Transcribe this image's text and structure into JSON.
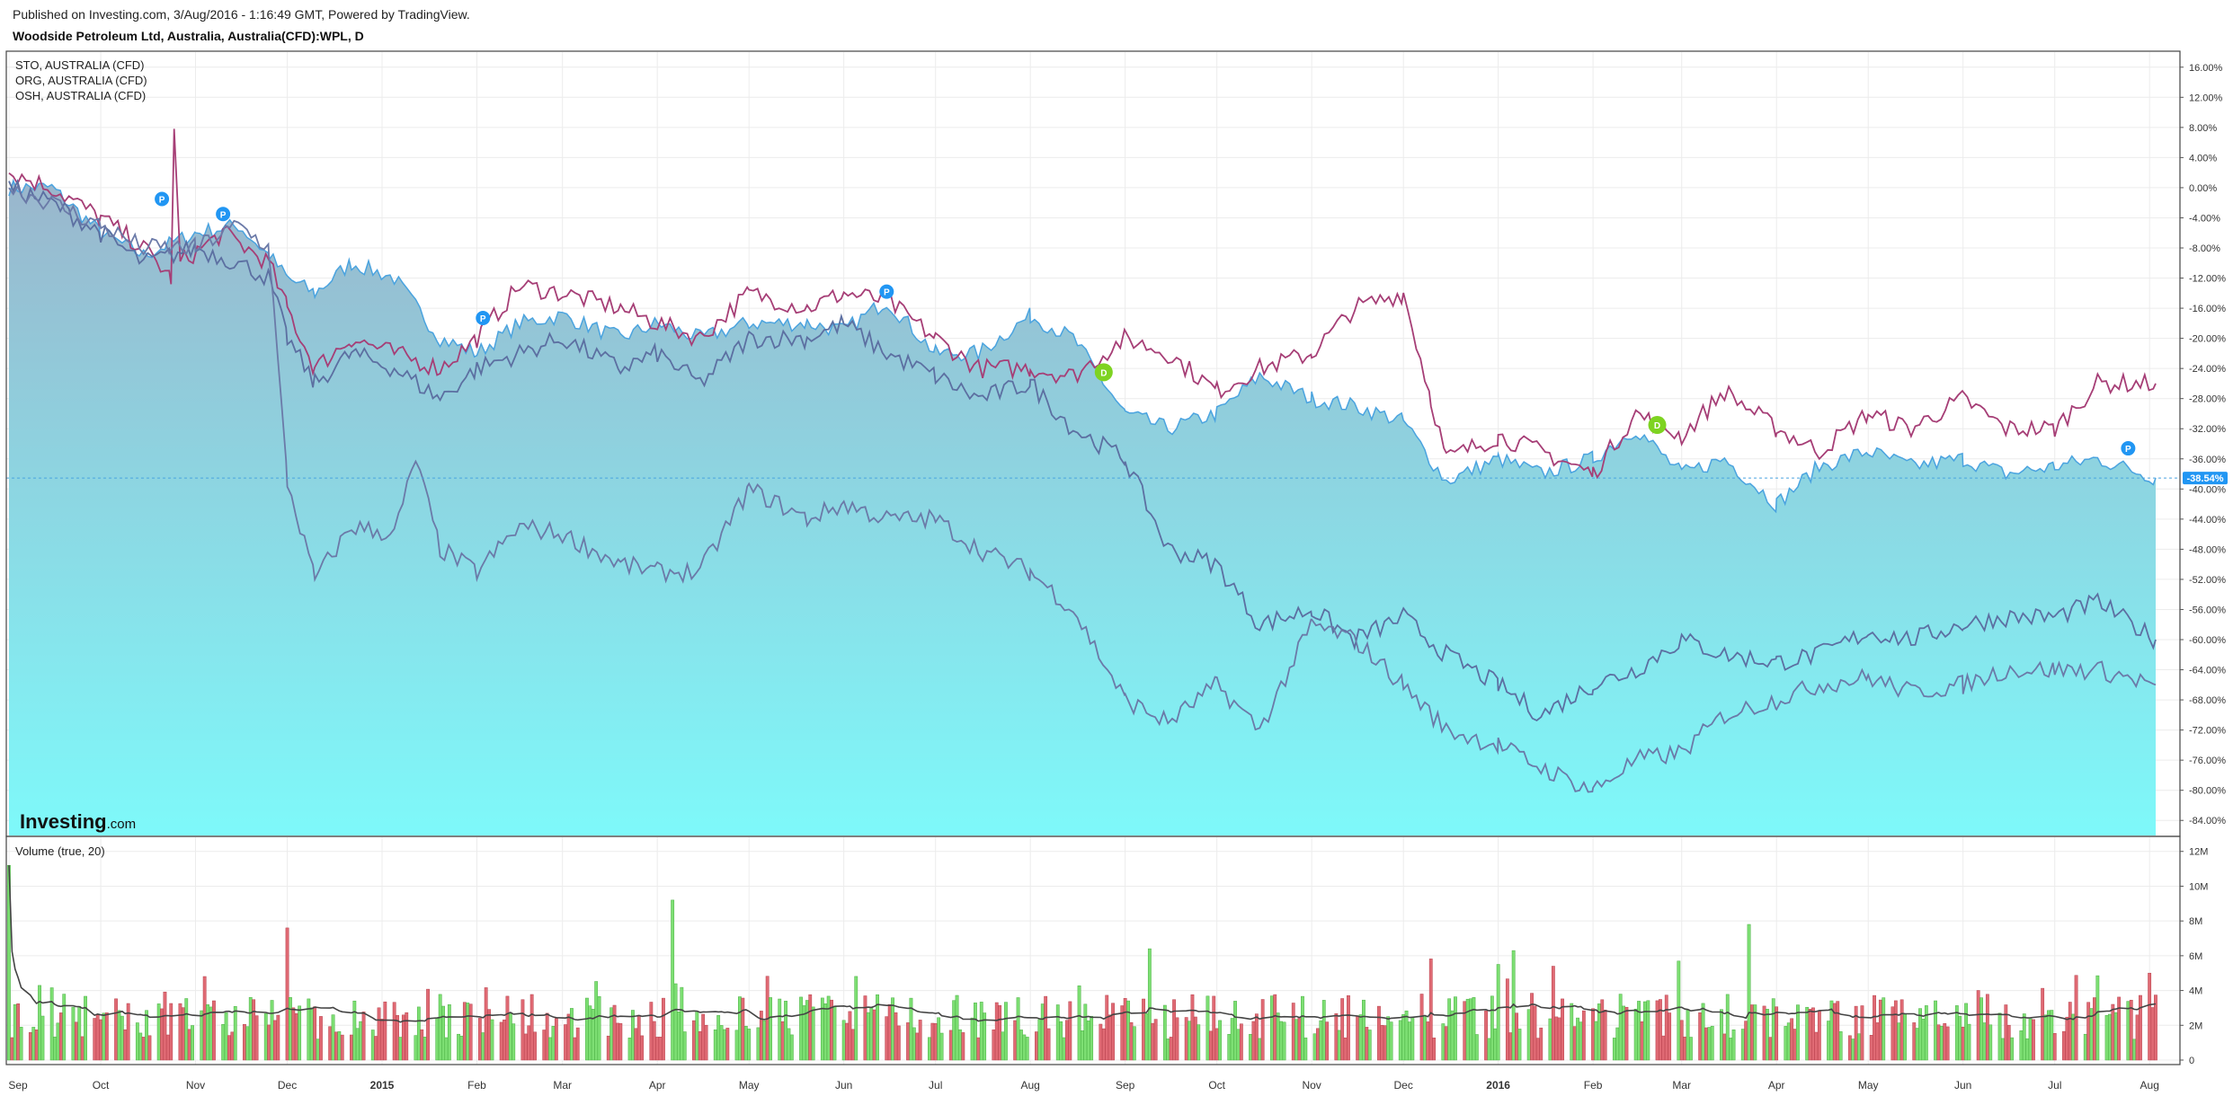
{
  "header": {
    "published": "Published on Investing.com, 3/Aug/2016 - 1:16:49 GMT, Powered by TradingView.",
    "symbol": "Woodside Petroleum Ltd, Australia, Australia(CFD):WPL, D"
  },
  "logo": {
    "bold": "Investing",
    "suffix": ".com"
  },
  "colors": {
    "area_line": "#4aa3df",
    "area_top": "#9ab6cc",
    "area_bottom": "#7ef9fa",
    "sto": "#a63e76",
    "org": "#5c6fa1",
    "osh": "#6b7aa8",
    "vol_up": "#7ddf73",
    "vol_down": "#e06a74",
    "vol_ma": "#444444",
    "badge_p": "#2196f3",
    "badge_d": "#7ed321",
    "grid": "#ececec"
  },
  "chart_data": [
    {
      "type": "area",
      "title": "Woodside Petroleum Ltd, Australia, Australia(CFD):WPL, D",
      "ylim": [
        -86,
        18
      ],
      "yticks": [
        "16.00%",
        "12.00%",
        "8.00%",
        "4.00%",
        "0.00%",
        "-4.00%",
        "-8.00%",
        "-12.00%",
        "-16.00%",
        "-20.00%",
        "-24.00%",
        "-28.00%",
        "-32.00%",
        "-36.00%",
        "-40.00%",
        "-44.00%",
        "-48.00%",
        "-52.00%",
        "-56.00%",
        "-60.00%",
        "-64.00%",
        "-68.00%",
        "-72.00%",
        "-76.00%",
        "-80.00%",
        "-84.00%"
      ],
      "last_value_label": "-38.54%",
      "last_value": -38.54,
      "xticks": [
        "Sep",
        "Oct",
        "Nov",
        "Dec",
        "2015",
        "Feb",
        "Mar",
        "Apr",
        "May",
        "Jun",
        "Jul",
        "Aug",
        "Sep",
        "Oct",
        "Nov",
        "Dec",
        "2016",
        "Feb",
        "Mar",
        "Apr",
        "May",
        "Jun",
        "Jul",
        "Aug"
      ],
      "legend": [
        "STO, AUSTRALIA (CFD)",
        "ORG, AUSTRALIA (CFD)",
        "OSH, AUSTRALIA (CFD)"
      ],
      "x_start": "2014-09-01",
      "x_end": "2016-08-03",
      "series": [
        {
          "name": "Woodside Petroleum Ltd, Australia, Australia(CFD):WPL, D",
          "role": "area",
          "points": [
            [
              "2014-09-01",
              0
            ],
            [
              "2014-09-15",
              0
            ],
            [
              "2014-10-01",
              -6
            ],
            [
              "2014-10-15",
              -9
            ],
            [
              "2014-11-01",
              -6
            ],
            [
              "2014-11-15",
              -5
            ],
            [
              "2014-11-25",
              -9
            ],
            [
              "2014-12-01",
              -12
            ],
            [
              "2014-12-10",
              -14
            ],
            [
              "2014-12-22",
              -10
            ],
            [
              "2015-01-05",
              -12
            ],
            [
              "2015-01-20",
              -20
            ],
            [
              "2015-02-01",
              -22
            ],
            [
              "2015-02-15",
              -18
            ],
            [
              "2015-03-01",
              -17
            ],
            [
              "2015-03-20",
              -20
            ],
            [
              "2015-04-01",
              -18
            ],
            [
              "2015-04-15",
              -20
            ],
            [
              "2015-05-01",
              -18
            ],
            [
              "2015-05-20",
              -18
            ],
            [
              "2015-06-01",
              -19
            ],
            [
              "2015-06-15",
              -15
            ],
            [
              "2015-07-01",
              -22
            ],
            [
              "2015-07-15",
              -22
            ],
            [
              "2015-08-01",
              -17
            ],
            [
              "2015-08-15",
              -20
            ],
            [
              "2015-09-01",
              -30
            ],
            [
              "2015-09-15",
              -32
            ],
            [
              "2015-10-01",
              -30
            ],
            [
              "2015-10-15",
              -25
            ],
            [
              "2015-11-01",
              -28
            ],
            [
              "2015-11-15",
              -29
            ],
            [
              "2015-12-01",
              -31
            ],
            [
              "2015-12-15",
              -39
            ],
            [
              "2016-01-01",
              -36
            ],
            [
              "2016-01-15",
              -38
            ],
            [
              "2016-02-01",
              -36
            ],
            [
              "2016-02-15",
              -32
            ],
            [
              "2016-03-01",
              -38
            ],
            [
              "2016-03-15",
              -36
            ],
            [
              "2016-04-01",
              -42
            ],
            [
              "2016-04-15",
              -37
            ],
            [
              "2016-05-01",
              -35
            ],
            [
              "2016-05-15",
              -37
            ],
            [
              "2016-06-01",
              -36
            ],
            [
              "2016-06-15",
              -38
            ],
            [
              "2016-07-01",
              -37
            ],
            [
              "2016-07-15",
              -36
            ],
            [
              "2016-08-03",
              -38.54
            ]
          ]
        },
        {
          "name": "STO, AUSTRALIA (CFD)",
          "points": [
            [
              "2014-09-01",
              2
            ],
            [
              "2014-09-15",
              0
            ],
            [
              "2014-10-01",
              -4
            ],
            [
              "2014-10-15",
              -8
            ],
            [
              "2014-10-24",
              -12
            ],
            [
              "2014-10-25",
              7
            ],
            [
              "2014-10-27",
              -10
            ],
            [
              "2014-11-10",
              -6
            ],
            [
              "2014-11-25",
              -10
            ],
            [
              "2014-12-01",
              -16
            ],
            [
              "2014-12-10",
              -24
            ],
            [
              "2014-12-22",
              -20
            ],
            [
              "2015-01-05",
              -22
            ],
            [
              "2015-01-20",
              -24
            ],
            [
              "2015-02-01",
              -20
            ],
            [
              "2015-02-15",
              -13
            ],
            [
              "2015-03-01",
              -14
            ],
            [
              "2015-03-20",
              -16
            ],
            [
              "2015-04-01",
              -18
            ],
            [
              "2015-04-15",
              -20
            ],
            [
              "2015-05-01",
              -14
            ],
            [
              "2015-05-20",
              -16
            ],
            [
              "2015-06-01",
              -14
            ],
            [
              "2015-06-15",
              -15
            ],
            [
              "2015-07-01",
              -20
            ],
            [
              "2015-07-15",
              -24
            ],
            [
              "2015-08-01",
              -24
            ],
            [
              "2015-08-15",
              -25
            ],
            [
              "2015-09-01",
              -20
            ],
            [
              "2015-09-15",
              -22
            ],
            [
              "2015-10-01",
              -27
            ],
            [
              "2015-10-15",
              -24
            ],
            [
              "2015-11-01",
              -22
            ],
            [
              "2015-11-15",
              -16
            ],
            [
              "2015-12-01",
              -14
            ],
            [
              "2015-12-10",
              -28
            ],
            [
              "2015-12-15",
              -36
            ],
            [
              "2016-01-01",
              -33
            ],
            [
              "2016-01-15",
              -35
            ],
            [
              "2016-02-01",
              -38
            ],
            [
              "2016-02-15",
              -30
            ],
            [
              "2016-03-01",
              -33
            ],
            [
              "2016-03-15",
              -27
            ],
            [
              "2016-04-01",
              -32
            ],
            [
              "2016-04-15",
              -35
            ],
            [
              "2016-05-01",
              -30
            ],
            [
              "2016-05-15",
              -32
            ],
            [
              "2016-06-01",
              -28
            ],
            [
              "2016-06-15",
              -32
            ],
            [
              "2016-07-01",
              -32
            ],
            [
              "2016-07-15",
              -26
            ],
            [
              "2016-08-03",
              -26
            ]
          ]
        },
        {
          "name": "ORG, AUSTRALIA (CFD)",
          "points": [
            [
              "2014-09-01",
              0
            ],
            [
              "2014-09-15",
              -2
            ],
            [
              "2014-10-01",
              -6
            ],
            [
              "2014-10-15",
              -10
            ],
            [
              "2014-11-01",
              -8
            ],
            [
              "2014-11-15",
              -10
            ],
            [
              "2014-11-25",
              -12
            ],
            [
              "2014-12-01",
              -20
            ],
            [
              "2014-12-10",
              -26
            ],
            [
              "2014-12-22",
              -22
            ],
            [
              "2015-01-05",
              -24
            ],
            [
              "2015-01-20",
              -28
            ],
            [
              "2015-02-01",
              -24
            ],
            [
              "2015-02-15",
              -22
            ],
            [
              "2015-03-01",
              -20
            ],
            [
              "2015-03-20",
              -24
            ],
            [
              "2015-04-01",
              -22
            ],
            [
              "2015-04-15",
              -26
            ],
            [
              "2015-05-01",
              -20
            ],
            [
              "2015-05-20",
              -20
            ],
            [
              "2015-06-01",
              -18
            ],
            [
              "2015-06-15",
              -22
            ],
            [
              "2015-07-01",
              -25
            ],
            [
              "2015-07-15",
              -28
            ],
            [
              "2015-08-01",
              -26
            ],
            [
              "2015-08-15",
              -32
            ],
            [
              "2015-09-01",
              -36
            ],
            [
              "2015-09-15",
              -48
            ],
            [
              "2015-10-01",
              -50
            ],
            [
              "2015-10-15",
              -58
            ],
            [
              "2015-11-01",
              -56
            ],
            [
              "2015-11-15",
              -60
            ],
            [
              "2015-12-01",
              -57
            ],
            [
              "2015-12-15",
              -62
            ],
            [
              "2016-01-01",
              -66
            ],
            [
              "2016-01-15",
              -70
            ],
            [
              "2016-02-01",
              -66
            ],
            [
              "2016-02-15",
              -64
            ],
            [
              "2016-03-01",
              -60
            ],
            [
              "2016-03-15",
              -62
            ],
            [
              "2016-04-01",
              -63
            ],
            [
              "2016-04-15",
              -62
            ],
            [
              "2016-05-01",
              -59
            ],
            [
              "2016-05-15",
              -60
            ],
            [
              "2016-06-01",
              -58
            ],
            [
              "2016-06-15",
              -57
            ],
            [
              "2016-07-01",
              -57
            ],
            [
              "2016-07-15",
              -55
            ],
            [
              "2016-08-03",
              -60
            ]
          ]
        },
        {
          "name": "OSH, AUSTRALIA (CFD)",
          "points": [
            [
              "2014-09-01",
              0
            ],
            [
              "2014-09-15",
              -2
            ],
            [
              "2014-10-01",
              -5
            ],
            [
              "2014-10-15",
              -8
            ],
            [
              "2014-11-01",
              -8
            ],
            [
              "2014-11-15",
              -5
            ],
            [
              "2014-11-25",
              -8
            ],
            [
              "2014-12-01",
              -39
            ],
            [
              "2014-12-10",
              -52
            ],
            [
              "2014-12-22",
              -45
            ],
            [
              "2015-01-05",
              -46
            ],
            [
              "2015-01-12",
              -36
            ],
            [
              "2015-01-20",
              -48
            ],
            [
              "2015-02-01",
              -51
            ],
            [
              "2015-02-15",
              -45
            ],
            [
              "2015-03-01",
              -46
            ],
            [
              "2015-03-20",
              -50
            ],
            [
              "2015-04-01",
              -51
            ],
            [
              "2015-04-15",
              -51
            ],
            [
              "2015-05-01",
              -40
            ],
            [
              "2015-05-20",
              -44
            ],
            [
              "2015-06-01",
              -42
            ],
            [
              "2015-06-15",
              -44
            ],
            [
              "2015-07-01",
              -44
            ],
            [
              "2015-07-15",
              -48
            ],
            [
              "2015-08-01",
              -51
            ],
            [
              "2015-08-15",
              -56
            ],
            [
              "2015-09-01",
              -68
            ],
            [
              "2015-09-15",
              -71
            ],
            [
              "2015-10-01",
              -66
            ],
            [
              "2015-10-15",
              -72
            ],
            [
              "2015-11-01",
              -58
            ],
            [
              "2015-11-15",
              -60
            ],
            [
              "2015-12-01",
              -66
            ],
            [
              "2015-12-15",
              -72
            ],
            [
              "2016-01-01",
              -74
            ],
            [
              "2016-01-15",
              -77
            ],
            [
              "2016-02-01",
              -80
            ],
            [
              "2016-02-15",
              -76
            ],
            [
              "2016-03-01",
              -75
            ],
            [
              "2016-03-15",
              -70
            ],
            [
              "2016-04-01",
              -68
            ],
            [
              "2016-04-15",
              -66
            ],
            [
              "2016-05-01",
              -65
            ],
            [
              "2016-05-15",
              -67
            ],
            [
              "2016-06-01",
              -66
            ],
            [
              "2016-06-15",
              -64
            ],
            [
              "2016-07-01",
              -64
            ],
            [
              "2016-07-15",
              -64
            ],
            [
              "2016-08-03",
              -66
            ]
          ]
        }
      ],
      "markers": [
        {
          "label": "P",
          "kind": "p",
          "date": "2014-10-21",
          "value": -1.5
        },
        {
          "label": "P",
          "kind": "p",
          "date": "2014-11-10",
          "value": -3.5
        },
        {
          "label": "P",
          "kind": "p",
          "date": "2015-02-03",
          "value": -17.3
        },
        {
          "label": "P",
          "kind": "p",
          "date": "2015-06-15",
          "value": -13.8
        },
        {
          "label": "D",
          "kind": "d",
          "date": "2015-08-25",
          "value": -24.5
        },
        {
          "label": "D",
          "kind": "d",
          "date": "2016-02-22",
          "value": -31.5
        },
        {
          "label": "P",
          "kind": "p",
          "date": "2016-07-25",
          "value": -34.6
        }
      ]
    },
    {
      "type": "bar",
      "title": "Volume (true, 20)",
      "ylim": [
        0,
        12.4
      ],
      "yticks": [
        "12M",
        "10M",
        "8M",
        "6M",
        "4M",
        "2M",
        "0"
      ],
      "ytick_values": [
        12,
        10,
        8,
        6,
        4,
        2,
        0
      ],
      "unit": "M",
      "bars_per_day": "trading days 2014-09-01 to 2016-08-03",
      "ma_period": 20,
      "notable": [
        {
          "date": "2014-09-01",
          "value": 11.2,
          "dir": "up"
        },
        {
          "date": "2014-12-01",
          "value": 7.6,
          "dir": "down"
        },
        {
          "date": "2015-04-05",
          "value": 9.2,
          "dir": "up"
        },
        {
          "date": "2015-09-09",
          "value": 6.4,
          "dir": "up"
        },
        {
          "date": "2016-01-06",
          "value": 6.3,
          "dir": "up"
        },
        {
          "date": "2016-03-23",
          "value": 7.8,
          "dir": "up"
        },
        {
          "date": "2016-08-01",
          "value": 5.0,
          "dir": "down"
        }
      ]
    }
  ]
}
